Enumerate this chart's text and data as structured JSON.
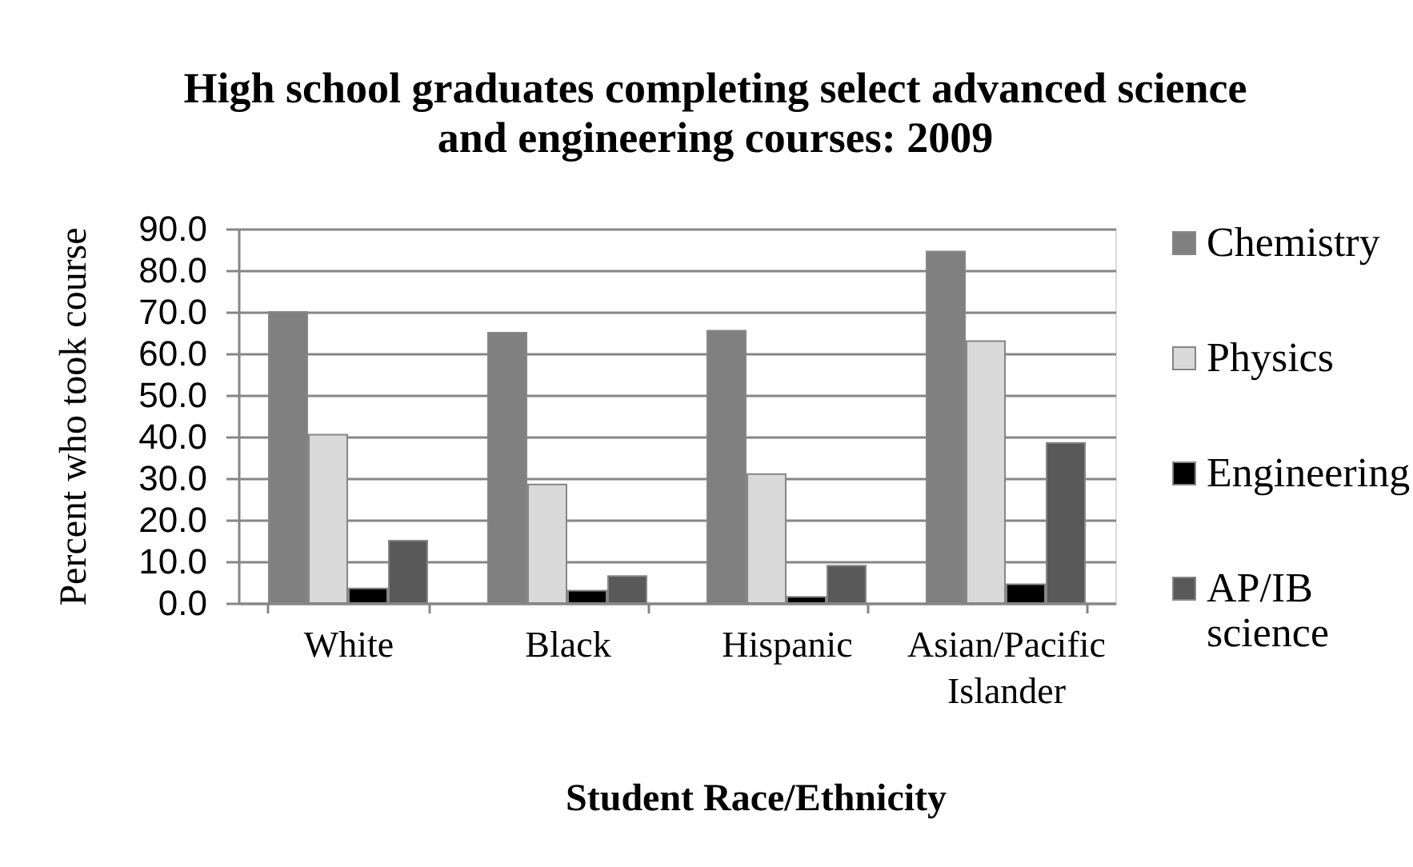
{
  "chart_data": {
    "type": "bar",
    "title": "High school graduates completing select advanced science and engineering courses: 2009",
    "xlabel": "Student Race/Ethnicity",
    "ylabel": "Percent who took course",
    "categories": [
      "White",
      "Black",
      "Hispanic",
      "Asian/Pacific Islander"
    ],
    "series": [
      {
        "name": "Chemistry",
        "color": "#808080",
        "values": [
          70,
          65,
          65.5,
          84.5
        ]
      },
      {
        "name": "Physics",
        "color": "#d9d9d9",
        "values": [
          40.5,
          28.5,
          31,
          63
        ]
      },
      {
        "name": "Engineering",
        "color": "#000000",
        "values": [
          3.5,
          3,
          1.5,
          4.5
        ]
      },
      {
        "name": "AP/IB science",
        "color": "#595959",
        "values": [
          15,
          6.5,
          9,
          38.5
        ]
      }
    ],
    "ylim": [
      0,
      90
    ],
    "yticks": [
      {
        "value": 0,
        "label": "0.0"
      },
      {
        "value": 10,
        "label": "10.0"
      },
      {
        "value": 20,
        "label": "20.0"
      },
      {
        "value": 30,
        "label": "30.0"
      },
      {
        "value": 40,
        "label": "40.0"
      },
      {
        "value": 50,
        "label": "50.0"
      },
      {
        "value": 60,
        "label": "60.0"
      },
      {
        "value": 70,
        "label": "70.0"
      },
      {
        "value": 80,
        "label": "80.0"
      },
      {
        "value": 90,
        "label": "90.0"
      }
    ],
    "grid": "y",
    "legend": "right"
  }
}
